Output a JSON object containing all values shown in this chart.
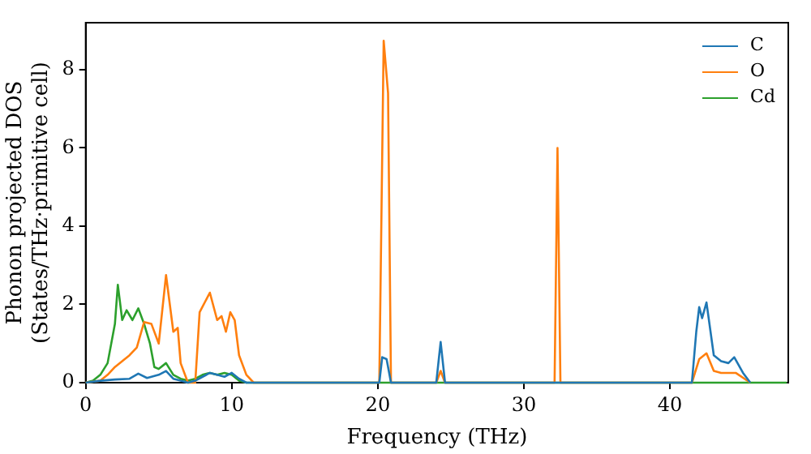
{
  "chart_data": {
    "type": "line",
    "xlabel": "Frequency (THz)",
    "ylabel": "Phonon projected DOS\n(States/THz·primitive cell)",
    "xlim": [
      0,
      48.1
    ],
    "ylim": [
      0,
      9.2
    ],
    "xticks": [
      0,
      10,
      20,
      30,
      40
    ],
    "yticks": [
      0,
      2,
      4,
      6,
      8
    ],
    "grid": false,
    "legend": "top right",
    "marker": "none",
    "line_style": "solid",
    "series": [
      {
        "name": "C",
        "color": "#1f77b4",
        "x": [
          0,
          1,
          2,
          3,
          3.6,
          4.2,
          5,
          5.5,
          6,
          6.5,
          7,
          7.5,
          8,
          8.5,
          9,
          9.5,
          10,
          10.5,
          11,
          20.1,
          20.3,
          20.6,
          20.9,
          24,
          24.3,
          24.6,
          41.5,
          41.8,
          42,
          42.2,
          42.5,
          43,
          43.5,
          44,
          44.4,
          45,
          45.5
        ],
        "values": [
          0,
          0.05,
          0.08,
          0.1,
          0.23,
          0.12,
          0.2,
          0.3,
          0.1,
          0.05,
          0,
          0.05,
          0.15,
          0.25,
          0.2,
          0.15,
          0.25,
          0.1,
          0,
          0,
          0.65,
          0.6,
          0,
          0,
          1.04,
          0,
          0,
          1.3,
          1.93,
          1.65,
          2.05,
          0.7,
          0.55,
          0.5,
          0.65,
          0.25,
          0
        ]
      },
      {
        "name": "O",
        "color": "#ff7f0e",
        "x": [
          0,
          1,
          1.5,
          2,
          2.5,
          3,
          3.5,
          4,
          4.5,
          5,
          5.5,
          6,
          6.3,
          6.5,
          7,
          7.5,
          7.8,
          8.5,
          9,
          9.3,
          9.6,
          9.9,
          10.2,
          10.5,
          11,
          11.5,
          20.1,
          20.4,
          20.7,
          20.9,
          24,
          24.3,
          24.6,
          32.1,
          32.3,
          32.5,
          41.5,
          42,
          42.5,
          43,
          43.5,
          44,
          44.5,
          45.5
        ],
        "values": [
          0,
          0.05,
          0.2,
          0.4,
          0.55,
          0.7,
          0.9,
          1.55,
          1.5,
          1.0,
          2.75,
          1.3,
          1.4,
          0.5,
          0,
          0,
          1.8,
          2.3,
          1.6,
          1.7,
          1.3,
          1.8,
          1.6,
          0.7,
          0.2,
          0,
          0,
          8.74,
          7.4,
          0,
          0,
          0.3,
          0,
          0,
          6,
          0,
          0,
          0.6,
          0.75,
          0.3,
          0.25,
          0.25,
          0.25,
          0
        ]
      },
      {
        "name": "Cd",
        "color": "#2ca02c",
        "x": [
          0,
          0.5,
          1,
          1.5,
          2,
          2.2,
          2.5,
          2.8,
          3.2,
          3.6,
          4,
          4.4,
          4.7,
          5,
          5.5,
          6,
          6.5,
          7,
          7.5,
          8,
          8.5,
          9,
          9.5,
          10,
          10.5,
          11,
          48
        ],
        "values": [
          0,
          0.05,
          0.2,
          0.5,
          1.5,
          2.5,
          1.6,
          1.85,
          1.6,
          1.9,
          1.5,
          1.0,
          0.4,
          0.35,
          0.5,
          0.2,
          0.1,
          0.05,
          0.1,
          0.2,
          0.25,
          0.2,
          0.25,
          0.2,
          0.05,
          0,
          0
        ]
      }
    ]
  }
}
